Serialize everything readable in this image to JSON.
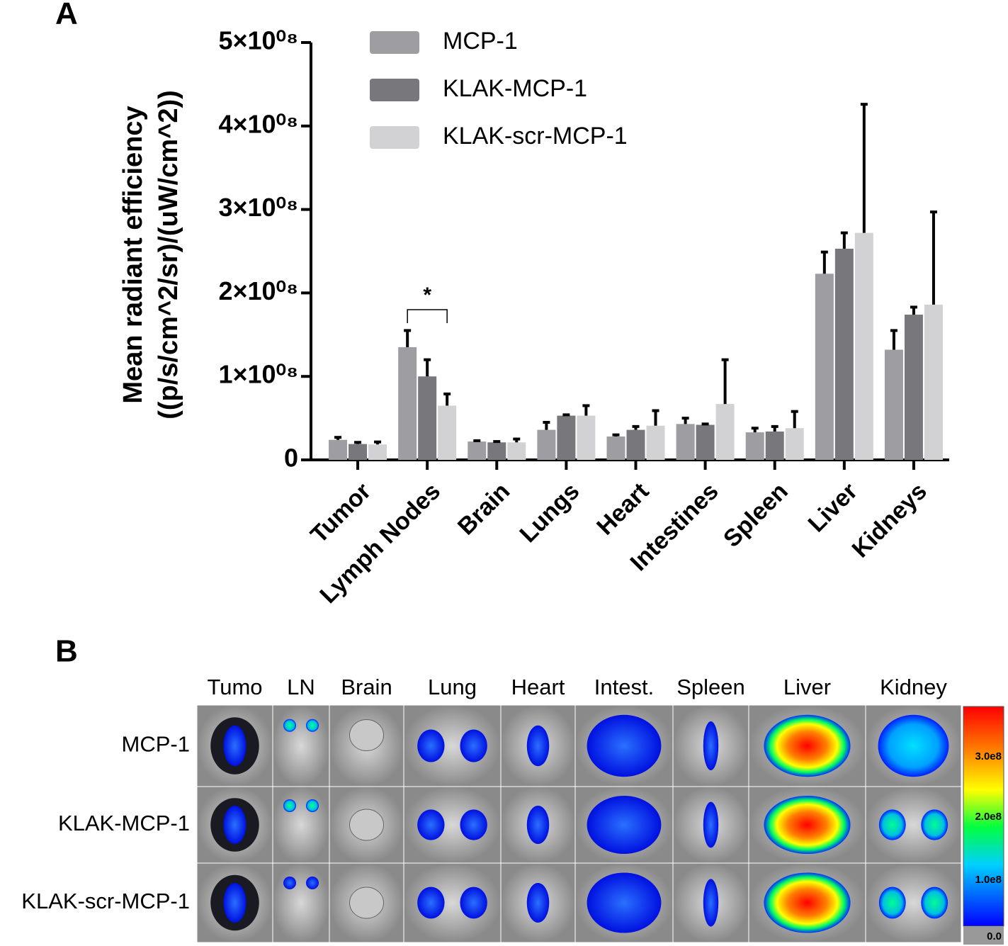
{
  "chart_data": {
    "type": "bar",
    "panel_label": "A",
    "ylabel": [
      "Mean radiant efficiency",
      "((p/s/cm^2/sr)/(uW/cm^2))"
    ],
    "categories": [
      "Tumor",
      "Lymph Nodes",
      "Brain",
      "Lungs",
      "Heart",
      "Intestines",
      "Spleen",
      "Liver",
      "Kidneys"
    ],
    "series": [
      {
        "name": "MCP-1",
        "color": "#9d9da2",
        "values": [
          24000000,
          135000000,
          22000000,
          36000000,
          28000000,
          43000000,
          33000000,
          223000000,
          132000000
        ],
        "errors": [
          3000000,
          20000000,
          1000000,
          9000000,
          2000000,
          7000000,
          5000000,
          26000000,
          23000000
        ]
      },
      {
        "name": "KLAK-MCP-1",
        "color": "#78787c",
        "values": [
          19000000,
          100000000,
          21000000,
          53000000,
          36000000,
          42000000,
          34000000,
          253000000,
          174000000
        ],
        "errors": [
          2000000,
          20000000,
          1000000,
          1000000,
          4000000,
          1000000,
          6000000,
          19000000,
          9000000
        ]
      },
      {
        "name": "KLAK-scr-MCP-1",
        "color": "#d2d2d4",
        "values": [
          18500000,
          65000000,
          21000000,
          53000000,
          41000000,
          67000000,
          38000000,
          272000000,
          186000000
        ],
        "errors": [
          3000000,
          14000000,
          4000000,
          12000000,
          18000000,
          53000000,
          20000000,
          154000000,
          111000000
        ]
      }
    ],
    "ylim": [
      0,
      500000000
    ],
    "yticks": [
      0,
      {
        "value": 100000000,
        "label": "1×10⁰⁸"
      },
      {
        "value": 200000000,
        "label": "2×10⁰⁸"
      },
      {
        "value": 300000000,
        "label": "3×10⁰⁸"
      },
      {
        "value": 400000000,
        "label": "4×10⁰⁸"
      },
      {
        "value": 500000000,
        "label": "5×10⁰⁸"
      }
    ],
    "annotations": [
      {
        "text": "*"
      }
    ]
  },
  "panel_b": {
    "panel_label": "B",
    "columns": [
      "Tumo",
      "LN",
      "Brain",
      "Lung",
      "Heart",
      "Intest.",
      "Spleen",
      "Liver",
      "Kidney"
    ],
    "rows": [
      "MCP-1",
      "KLAK-MCP-1",
      "KLAK-scr-MCP-1"
    ],
    "colorbar_labels": [
      "3.0e8",
      "2.0e8",
      "1.0e8",
      "0.0"
    ]
  }
}
